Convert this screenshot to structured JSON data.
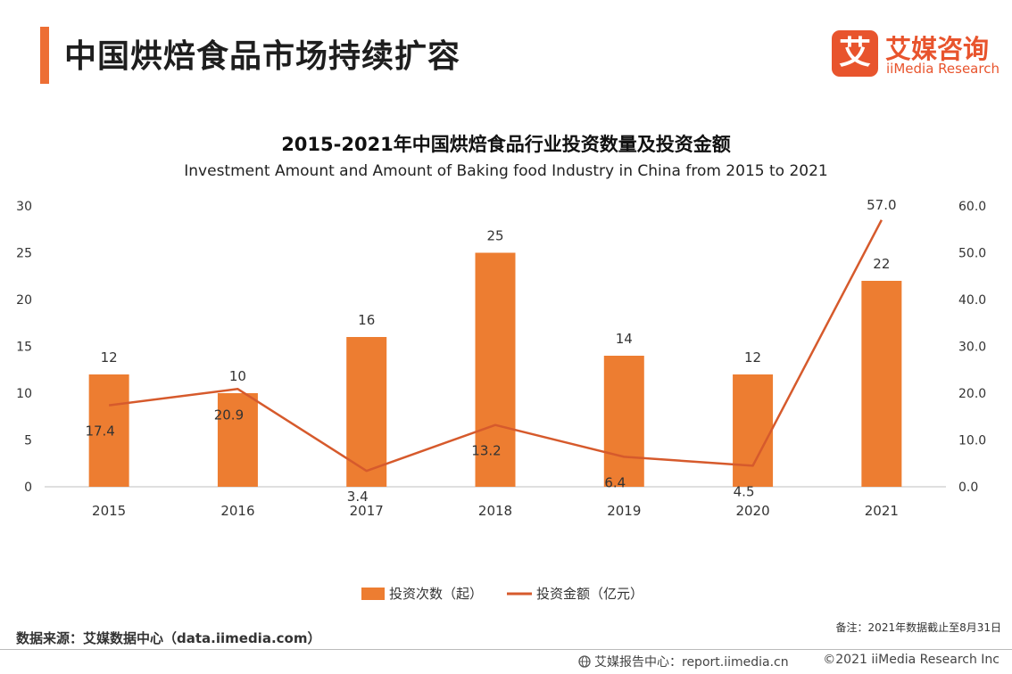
{
  "header": {
    "title": "中国烘焙食品市场持续扩容",
    "logo_mark": "艾",
    "logo_cn": "艾媒咨询",
    "logo_en": "iiMedia Research"
  },
  "colors": {
    "accent": "#ED6E34",
    "bar": "#ED7D31",
    "line": "#D65A2C",
    "axis": "#bfbfbf",
    "text": "#333333",
    "logo": "#E8542D"
  },
  "chart_data": {
    "type": "bar",
    "title": "2015-2021年中国烘焙食品行业投资数量及投资金额",
    "subtitle": "Investment Amount and Amount of Baking food Industry in China from 2015 to 2021",
    "categories": [
      "2015",
      "2016",
      "2017",
      "2018",
      "2019",
      "2020",
      "2021"
    ],
    "series": [
      {
        "name": "投资次数（起）",
        "type": "bar",
        "axis": "left",
        "values": [
          12,
          10,
          16,
          25,
          14,
          12,
          22
        ],
        "labels": [
          "12",
          "10",
          "16",
          "25",
          "14",
          "12",
          "22"
        ]
      },
      {
        "name": "投资金额（亿元）",
        "type": "line",
        "axis": "right",
        "values": [
          17.4,
          20.9,
          3.4,
          13.2,
          6.4,
          4.5,
          57.0
        ],
        "labels": [
          "17.4",
          "20.9",
          "3.4",
          "13.2",
          "6.4",
          "4.5",
          "57.0"
        ]
      }
    ],
    "y_left": {
      "range": [
        0,
        30
      ],
      "ticks": [
        "0",
        "5",
        "10",
        "15",
        "20",
        "25",
        "30"
      ]
    },
    "y_right": {
      "range": [
        0,
        60
      ],
      "ticks": [
        "0.0",
        "10.0",
        "20.0",
        "30.0",
        "40.0",
        "50.0",
        "60.0"
      ]
    },
    "grid": false,
    "legend": "bottom-center"
  },
  "footer": {
    "source": "数据来源：艾媒数据中心（data.iimedia.com）",
    "note": "备注：2021年数据截止至8月31日",
    "report": "艾媒报告中心：report.iimedia.cn",
    "copyright": "©2021  iiMedia Research  Inc"
  }
}
